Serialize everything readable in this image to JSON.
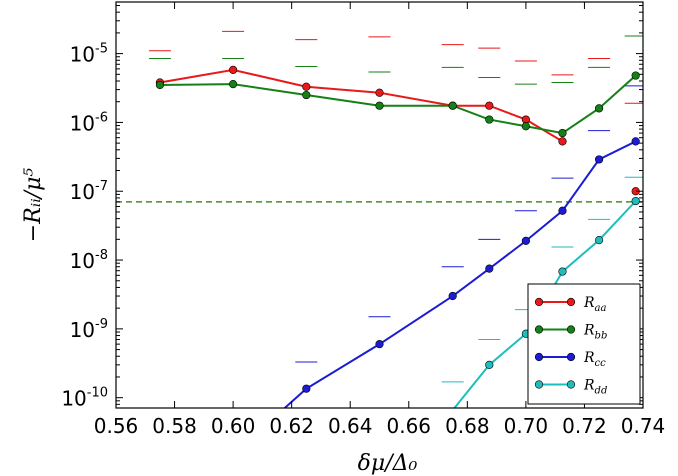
{
  "chart_data": {
    "type": "line",
    "xlabel": "δμ/Δ₀",
    "ylabel": "−Rᵢᵢ/μ⁵",
    "xlim": [
      0.56,
      0.74
    ],
    "ylim_log10": [
      -10.15,
      -4.25
    ],
    "y_scale": "log",
    "x_ticks": [
      "0.56",
      "0.58",
      "0.60",
      "0.62",
      "0.64",
      "0.66",
      "0.68",
      "0.70",
      "0.72",
      "0.74"
    ],
    "x_tick_values": [
      0.56,
      0.58,
      0.6,
      0.62,
      0.64,
      0.66,
      0.68,
      0.7,
      0.72,
      0.74
    ],
    "y_ticks": [
      {
        "base": "10",
        "exp": "-10",
        "value": 1e-10
      },
      {
        "base": "10",
        "exp": "-9",
        "value": 1e-09
      },
      {
        "base": "10",
        "exp": "-8",
        "value": 1e-08
      },
      {
        "base": "10",
        "exp": "-7",
        "value": 1e-07
      },
      {
        "base": "10",
        "exp": "-6",
        "value": 1e-06
      },
      {
        "base": "10",
        "exp": "-5",
        "value": 1e-05
      }
    ],
    "reference_line": {
      "y": 7e-08,
      "color": "#4a8a2a",
      "style": "dashed"
    },
    "legend_position": "lower-right",
    "series": [
      {
        "name": "R_aa",
        "sub": "aa",
        "color": "#e8191a",
        "x": [
          0.575,
          0.6,
          0.625,
          0.65,
          0.675,
          0.6875,
          0.7,
          0.7125
        ],
        "y": [
          3.8e-06,
          5.8e-06,
          3.3e-06,
          2.7e-06,
          1.75e-06,
          1.75e-06,
          1.1e-06,
          5.3e-07
        ],
        "extra_points": [
          {
            "x": 0.7375,
            "y": 1e-07
          }
        ]
      },
      {
        "name": "R_bb",
        "sub": "bb",
        "color": "#158015",
        "x": [
          0.575,
          0.6,
          0.625,
          0.65,
          0.675,
          0.6875,
          0.7,
          0.7125,
          0.725,
          0.7375
        ],
        "y": [
          3.5e-06,
          3.6e-06,
          2.5e-06,
          1.75e-06,
          1.75e-06,
          1.1e-06,
          8.8e-07,
          7e-07,
          1.6e-06,
          4.8e-06
        ],
        "extra_points": []
      },
      {
        "name": "R_cc",
        "sub": "cc",
        "color": "#1c1cd4",
        "x": [
          0.6175,
          0.625,
          0.65,
          0.675,
          0.6875,
          0.7,
          0.7125,
          0.725,
          0.7375
        ],
        "y": [
          7e-11,
          1.35e-10,
          6e-10,
          3e-09,
          7.5e-09,
          1.9e-08,
          5.2e-08,
          2.9e-07,
          5.3e-07
        ],
        "extra_points": []
      },
      {
        "name": "R_dd",
        "sub": "dd",
        "color": "#1ebebe",
        "x": [
          0.6755,
          0.6875,
          0.7,
          0.7125,
          0.725,
          0.7375
        ],
        "y": [
          7e-11,
          3e-10,
          8.5e-10,
          6.8e-09,
          1.95e-08,
          7.2e-08
        ],
        "extra_points": []
      }
    ],
    "error_dashes": [
      {
        "color": "#e8191a",
        "points": [
          [
            0.575,
            1.1e-05
          ],
          [
            0.6,
            2.1e-05
          ],
          [
            0.625,
            1.6e-05
          ],
          [
            0.65,
            1.75e-05
          ],
          [
            0.675,
            1.35e-05
          ],
          [
            0.6875,
            1.2e-05
          ],
          [
            0.7,
            7.8e-06
          ],
          [
            0.7125,
            4.9e-06
          ],
          [
            0.725,
            8.5e-06
          ],
          [
            0.7375,
            1.9e-06
          ]
        ]
      },
      {
        "color": "#158015",
        "points": [
          [
            0.575,
            8.5e-06
          ],
          [
            0.6,
            8.5e-06
          ],
          [
            0.625,
            6.5e-06
          ],
          [
            0.65,
            5.4e-06
          ],
          [
            0.675,
            6.3e-06
          ],
          [
            0.6875,
            4.5e-06
          ],
          [
            0.7,
            3.6e-06
          ],
          [
            0.7125,
            3.8e-06
          ],
          [
            0.725,
            6.3e-06
          ],
          [
            0.7375,
            1.8e-05
          ]
        ]
      },
      {
        "color": "#1c1cd4",
        "points": [
          [
            0.625,
            3.3e-10
          ],
          [
            0.65,
            1.5e-09
          ],
          [
            0.675,
            8e-09
          ],
          [
            0.6875,
            2e-08
          ],
          [
            0.7,
            5.2e-08
          ],
          [
            0.7125,
            1.55e-07
          ],
          [
            0.725,
            7.6e-07
          ],
          [
            0.7375,
            3.4e-06
          ]
        ]
      },
      {
        "color": "#1ebebe",
        "points": [
          [
            0.675,
            1.7e-10
          ],
          [
            0.6875,
            7e-10
          ],
          [
            0.7,
            1.9e-09
          ],
          [
            0.7125,
            1.55e-08
          ],
          [
            0.725,
            3.9e-08
          ],
          [
            0.7375,
            1.6e-07
          ]
        ]
      }
    ]
  }
}
